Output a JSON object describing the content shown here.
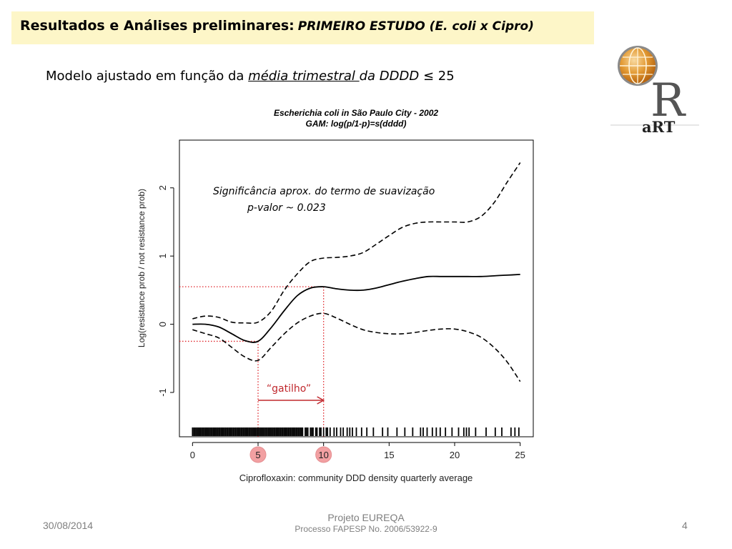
{
  "slide": {
    "title_main": "Resultados e Análises preliminares:",
    "title_italic": "PRIMEIRO ESTUDO (E. coli x Cipro)",
    "subtitle_prefix": "Modelo ajustado em função da ",
    "subtitle_underlined": "média trimestral ",
    "subtitle_italic": "da DDDD",
    "subtitle_suffix": " ≤ 25",
    "logo_text": "aRT",
    "logo_letter": "R"
  },
  "footer": {
    "date": "30/08/2014",
    "project": "Projeto EUREQA",
    "process": "Processo FAPESP No. 2006/53922-9",
    "page": "4"
  },
  "chart_data": {
    "type": "line",
    "title": "Escherichia coli in São Paulo City - 2002",
    "subtitle": "GAM: log(p/1-p)=s(dddd)",
    "xlabel": "Ciprofloxaxin: community DDD density quarterly average",
    "ylabel": "Log(resistance prob / not resistance prob)",
    "xlim": [
      -1,
      26
    ],
    "ylim": [
      -1.65,
      2.7
    ],
    "xticks": [
      0,
      5,
      10,
      15,
      20,
      25
    ],
    "yticks": [
      -1,
      0,
      1,
      2
    ],
    "x": [
      0,
      1,
      2,
      3,
      4,
      5,
      6,
      7,
      8,
      9,
      10,
      11,
      12,
      13,
      14,
      15,
      16,
      17,
      18,
      19,
      20,
      21,
      22,
      23,
      24,
      25
    ],
    "series": [
      {
        "role": "fit",
        "values": [
          0.0,
          0.0,
          -0.04,
          -0.14,
          -0.24,
          -0.25,
          -0.05,
          0.2,
          0.42,
          0.53,
          0.55,
          0.52,
          0.5,
          0.5,
          0.53,
          0.58,
          0.63,
          0.67,
          0.7,
          0.7,
          0.7,
          0.7,
          0.7,
          0.71,
          0.72,
          0.73
        ]
      },
      {
        "role": "upper",
        "values": [
          0.08,
          0.12,
          0.1,
          0.03,
          0.02,
          0.03,
          0.19,
          0.5,
          0.74,
          0.92,
          0.97,
          0.98,
          1.0,
          1.05,
          1.17,
          1.3,
          1.42,
          1.48,
          1.5,
          1.5,
          1.5,
          1.5,
          1.58,
          1.78,
          2.08,
          2.37
        ]
      },
      {
        "role": "lower",
        "values": [
          -0.08,
          -0.14,
          -0.2,
          -0.34,
          -0.48,
          -0.53,
          -0.34,
          -0.14,
          0.02,
          0.12,
          0.16,
          0.09,
          0.0,
          -0.08,
          -0.12,
          -0.14,
          -0.14,
          -0.12,
          -0.09,
          -0.07,
          -0.07,
          -0.11,
          -0.19,
          -0.34,
          -0.55,
          -0.84
        ]
      }
    ],
    "guides": [
      {
        "x": 5,
        "y": -0.25,
        "label": "5"
      },
      {
        "x": 10,
        "y": 0.55,
        "label": "10"
      }
    ],
    "arrow": {
      "from": 5,
      "to": 10,
      "label": "“gatilho”"
    },
    "annotation_line1": "Significância aprox. do termo de suavização",
    "annotation_line2": "p-valor ~ 0.023",
    "rug": [
      0,
      0.1,
      0.2,
      0.3,
      0.4,
      0.5,
      0.6,
      0.7,
      0.8,
      0.9,
      1.0,
      1.1,
      1.2,
      1.3,
      1.4,
      1.5,
      1.6,
      1.7,
      1.8,
      1.9,
      2.0,
      2.1,
      2.2,
      2.3,
      2.4,
      2.5,
      2.6,
      2.7,
      2.8,
      2.9,
      3.0,
      3.1,
      3.2,
      3.3,
      3.4,
      3.5,
      3.6,
      3.7,
      3.8,
      3.9,
      4.0,
      4.1,
      4.2,
      4.3,
      4.4,
      4.5,
      4.6,
      4.7,
      4.8,
      4.9,
      5.0,
      5.1,
      5.2,
      5.3,
      5.4,
      5.5,
      5.6,
      5.7,
      5.8,
      5.9,
      6.0,
      6.1,
      6.2,
      6.3,
      6.4,
      6.5,
      6.6,
      6.7,
      6.8,
      6.9,
      7.0,
      7.1,
      7.2,
      7.3,
      7.4,
      7.5,
      7.6,
      7.7,
      7.8,
      7.9,
      8.0,
      8.1,
      8.2,
      8.3,
      8.4,
      8.6,
      8.7,
      8.8,
      9.0,
      9.1,
      9.2,
      9.4,
      9.5,
      9.7,
      9.8,
      10.0,
      10.2,
      10.3,
      10.5,
      10.8,
      11.0,
      11.3,
      11.5,
      11.8,
      12.0,
      12.2,
      12.5,
      12.9,
      13.3,
      13.8,
      14.5,
      14.9,
      15.6,
      16.2,
      16.8,
      17.4,
      17.6,
      17.9,
      18.3,
      18.6,
      18.9,
      19.3,
      19.8,
      20.3,
      20.7,
      20.9,
      21.1,
      21.6,
      22.4,
      23.1,
      23.6,
      24.3,
      24.6,
      24.9
    ]
  }
}
